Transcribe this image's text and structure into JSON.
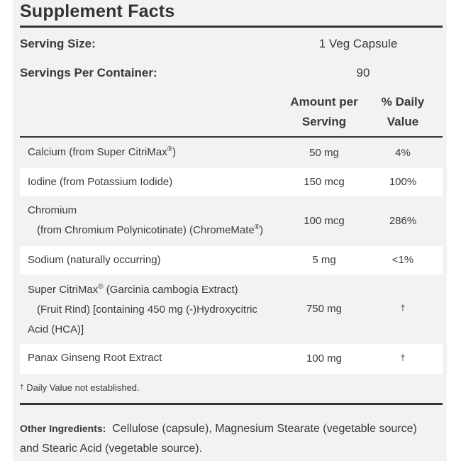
{
  "title": "Supplement Facts",
  "serving_size": {
    "label": "Serving Size:",
    "value": "1 Veg Capsule"
  },
  "servings_per_container": {
    "label": "Servings Per Container:",
    "value": "90"
  },
  "columns": {
    "amount_line1": "Amount per",
    "amount_line2": "Serving",
    "dv_line1": "% Daily",
    "dv_line2": "Value"
  },
  "nutrients": [
    {
      "line1": "Calcium (from Super CitriMax",
      "line1_sup": "®",
      "line1_after": ")",
      "amount": "50 mg",
      "dv": "4%"
    },
    {
      "line1": "Iodine (from Potassium Iodide)",
      "amount": "150 mcg",
      "dv": "100%"
    },
    {
      "line1": "Chromium",
      "line2": "(from Chromium Polynicotinate) (ChromeMate",
      "line2_sup": "®",
      "line2_after": ")",
      "amount": "100 mcg",
      "dv": "286%"
    },
    {
      "line1": "Sodium (naturally occurring)",
      "amount": "5 mg",
      "dv": "<1%"
    },
    {
      "line1": "Super CitriMax",
      "line1_sup": "®",
      "line1_after": " (Garcinia cambogia Extract)",
      "line2": "(Fruit Rind) [containing 450 mg (-)Hydroxycitric",
      "line3": "Acid (HCA)]",
      "amount": "750 mg",
      "dv": "†"
    },
    {
      "line1": "Panax Ginseng Root Extract",
      "amount": "100 mg",
      "dv": "†"
    }
  ],
  "footnote": {
    "dagger": "†",
    "text": "Daily Value not established."
  },
  "other_ingredients": {
    "label": "Other Ingredients:",
    "text": "Cellulose (capsule), Magnesium Stearate (vegetable source) and Stearic Acid (vegetable source)."
  }
}
